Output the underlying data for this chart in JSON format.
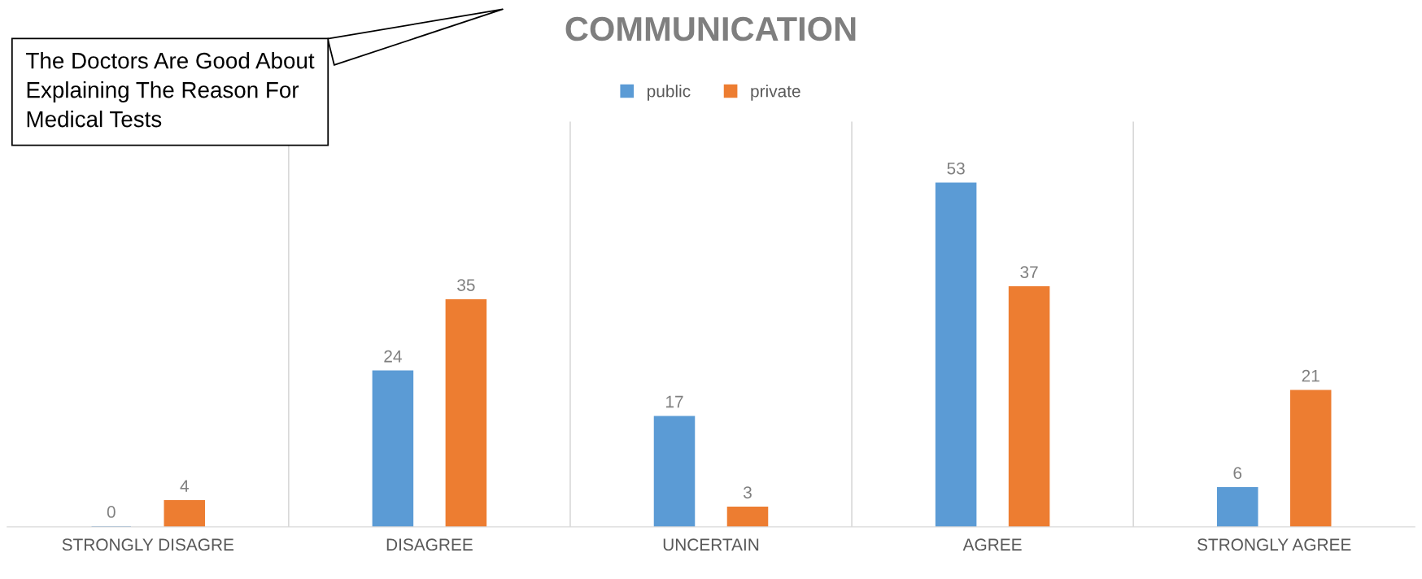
{
  "chart_data": {
    "type": "bar",
    "title": "COMMUNICATION",
    "categories": [
      "STRONGLY DISAGRE",
      "DISAGREE",
      "UNCERTAIN",
      "AGREE",
      "STRONGLY AGREE"
    ],
    "series": [
      {
        "name": "public",
        "color": "#5b9bd5",
        "values": [
          0,
          24,
          17,
          53,
          6
        ]
      },
      {
        "name": "private",
        "color": "#ed7d31",
        "values": [
          4,
          35,
          3,
          37,
          21
        ]
      }
    ],
    "data_labels": true,
    "legend": "top",
    "grid": "x",
    "annotations": [
      "The Doctors Are Good About Explaining The Reason For Medical Tests"
    ]
  }
}
